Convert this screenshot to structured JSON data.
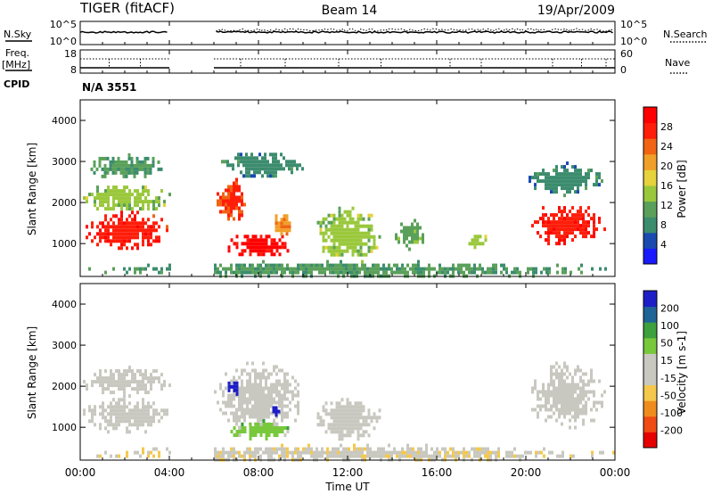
{
  "header": {
    "title": "TIGER (fitACF)",
    "beam": "Beam 14",
    "date": "19/Apr/2009"
  },
  "noise_panel": {
    "left_label": "N.Sky",
    "right_label": "N.Search",
    "left_ticks": [
      "10^5",
      "10^0"
    ],
    "right_ticks": [
      "10^5",
      "10^0"
    ]
  },
  "freq_panel": {
    "left_label_line1": "Freq.",
    "left_label_line2": "[MHz]",
    "left_ticks": [
      "18",
      "8"
    ],
    "right_label": "Nave",
    "right_ticks": [
      "60",
      "0"
    ]
  },
  "cpid": {
    "label": "CPID",
    "value": "N/A 3551"
  },
  "x_axis": {
    "label": "Time UT",
    "ticks": [
      "00:00",
      "04:00",
      "08:00",
      "12:00",
      "16:00",
      "20:00",
      "00:00"
    ]
  },
  "colors": {
    "scale_power": [
      "#1a1aff",
      "#1a4ab0",
      "#3c8c6e",
      "#5aa05a",
      "#9ac83c",
      "#e6d23c",
      "#f0a028",
      "#f06414",
      "#ff1e0a",
      "#ff0000"
    ],
    "scale_velocity": [
      "#e60000",
      "#f04b14",
      "#f08c1e",
      "#f5c84b",
      "#c8c8c0",
      "#c8c8c0",
      "#78c83c",
      "#3ca03c",
      "#1e6496",
      "#1e1ec8"
    ],
    "ground_scatter": "#c8c8c0"
  },
  "chart_data": [
    {
      "type": "heatmap",
      "name": "power",
      "ylabel": "Slant Range [km]",
      "yticks": [
        "1000",
        "2000",
        "3000",
        "4000"
      ],
      "ylim": [
        200,
        4500
      ],
      "xlim": [
        0,
        24
      ],
      "colorbar": {
        "label": "Power [dB]",
        "ticks": [
          "28",
          "24",
          "20",
          "16",
          "12",
          "8",
          "4"
        ],
        "range": [
          0,
          32
        ]
      },
      "data_gap_hours": [
        4.0,
        6.0
      ],
      "regions": [
        {
          "x": [
            0.0,
            4.0
          ],
          "y": [
            900,
            1800
          ],
          "value": 28
        },
        {
          "x": [
            0.0,
            4.0
          ],
          "y": [
            1800,
            2500
          ],
          "value": 14
        },
        {
          "x": [
            0.1,
            3.8
          ],
          "y": [
            2600,
            3200
          ],
          "value": 10
        },
        {
          "x": [
            6.0,
            7.5
          ],
          "y": [
            1600,
            2600
          ],
          "value": 26
        },
        {
          "x": [
            6.5,
            9.5
          ],
          "y": [
            700,
            1300
          ],
          "value": 30
        },
        {
          "x": [
            8.5,
            9.5
          ],
          "y": [
            1200,
            1800
          ],
          "value": 22
        },
        {
          "x": [
            6.2,
            10.0
          ],
          "y": [
            2600,
            3300
          ],
          "value": 8
        },
        {
          "x": [
            10.5,
            13.5
          ],
          "y": [
            600,
            1900
          ],
          "value": 14
        },
        {
          "x": [
            14.0,
            15.5
          ],
          "y": [
            900,
            1600
          ],
          "value": 12
        },
        {
          "x": [
            17.3,
            18.3
          ],
          "y": [
            900,
            1300
          ],
          "value": 14
        },
        {
          "x": [
            20.0,
            23.5
          ],
          "y": [
            1000,
            2000
          ],
          "value": 28
        },
        {
          "x": [
            20.0,
            23.5
          ],
          "y": [
            2200,
            3000
          ],
          "value": 8
        },
        {
          "x": [
            0.0,
            24.0
          ],
          "y": [
            200,
            600
          ],
          "value": 10
        }
      ]
    },
    {
      "type": "heatmap",
      "name": "velocity",
      "ylabel": "Slant Range [km]",
      "yticks": [
        "1000",
        "2000",
        "3000",
        "4000"
      ],
      "ylim": [
        200,
        4500
      ],
      "xlim": [
        0,
        24
      ],
      "colorbar": {
        "label": "Velocity [m s-1]",
        "ticks": [
          "200",
          "100",
          "50",
          "15",
          "-15",
          "-50",
          "-100",
          "-200"
        ],
        "range": [
          -250,
          250
        ]
      },
      "data_gap_hours": [
        4.0,
        6.0
      ],
      "regions": [
        {
          "x": [
            0.0,
            4.0
          ],
          "y": [
            900,
            1800
          ],
          "value": 0
        },
        {
          "x": [
            0.0,
            4.0
          ],
          "y": [
            1800,
            2500
          ],
          "value": 0
        },
        {
          "x": [
            6.0,
            10.0
          ],
          "y": [
            900,
            2600
          ],
          "value": 0
        },
        {
          "x": [
            6.5,
            9.5
          ],
          "y": [
            700,
            1200
          ],
          "value": 70
        },
        {
          "x": [
            6.5,
            7.2
          ],
          "y": [
            1800,
            2200
          ],
          "value": 220
        },
        {
          "x": [
            8.5,
            9.0
          ],
          "y": [
            1300,
            1600
          ],
          "value": 220
        },
        {
          "x": [
            10.5,
            13.5
          ],
          "y": [
            700,
            1800
          ],
          "value": 0
        },
        {
          "x": [
            20.0,
            23.5
          ],
          "y": [
            1000,
            2600
          ],
          "value": 0
        },
        {
          "x": [
            0.0,
            24.0
          ],
          "y": [
            200,
            600
          ],
          "value": -40
        }
      ]
    }
  ]
}
